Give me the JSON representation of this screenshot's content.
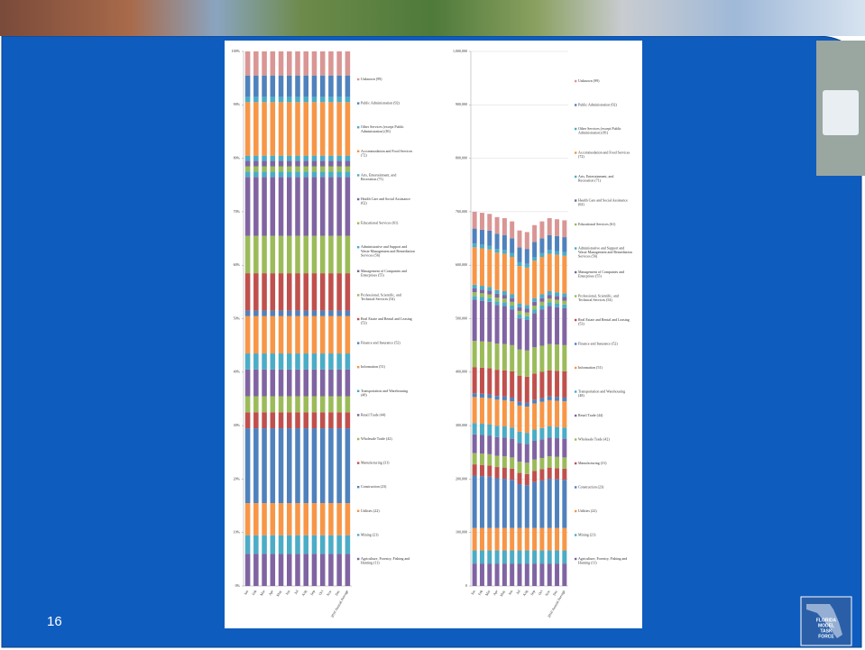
{
  "slide": {
    "page_number": "16",
    "logo": [
      "FLORIDA",
      "MODEL",
      "TASK",
      "FORCE"
    ]
  },
  "chart_data": [
    {
      "type": "stacked-bar",
      "categories": [
        "Jan",
        "Feb",
        "Mar",
        "Apr",
        "May",
        "Jun",
        "Jul",
        "Aug",
        "Sep",
        "Oct",
        "Nov",
        "Dec",
        "2010 Annual Average"
      ],
      "ylim": [
        0,
        100
      ],
      "yticks": [
        {
          "value": 0,
          "label": "0%"
        },
        {
          "value": 10,
          "label": "10%"
        },
        {
          "value": 20,
          "label": "20%"
        },
        {
          "value": 30,
          "label": "30%"
        },
        {
          "value": 40,
          "label": "40%"
        },
        {
          "value": 50,
          "label": "50%"
        },
        {
          "value": 60,
          "label": "60%"
        },
        {
          "value": 70,
          "label": "70%"
        },
        {
          "value": 80,
          "label": "80%"
        },
        {
          "value": 90,
          "label": "90%"
        },
        {
          "value": 100,
          "label": "100%"
        }
      ],
      "grid": false,
      "legend": "right",
      "series": [
        {
          "name": "Agriculture, Forestry, Fishing and Hunting (11)",
          "color": "#8064A2",
          "values": [
            6,
            6,
            6,
            6,
            6,
            6,
            6,
            6,
            6,
            6,
            6,
            6,
            6
          ]
        },
        {
          "name": "Mining (21)",
          "color": "#4BACC6",
          "values": [
            3.5,
            3.5,
            3.5,
            3.5,
            3.5,
            3.5,
            3.5,
            3.5,
            3.5,
            3.5,
            3.5,
            3.5,
            3.5
          ]
        },
        {
          "name": "Utilities (22)",
          "color": "#F79646",
          "values": [
            6,
            6,
            6,
            6,
            6,
            6,
            6,
            6,
            6,
            6,
            6,
            6,
            6
          ]
        },
        {
          "name": "Construction (23)",
          "color": "#4F81BD",
          "values": [
            14,
            14,
            14,
            14,
            14,
            14,
            14,
            14,
            14,
            14,
            14,
            14,
            14
          ]
        },
        {
          "name": "Manufacturing (31)",
          "color": "#C0504D",
          "values": [
            3,
            3,
            3,
            3,
            3,
            3,
            3,
            3,
            3,
            3,
            3,
            3,
            3
          ]
        },
        {
          "name": "Wholesale Trade (42)",
          "color": "#9BBB59",
          "values": [
            3,
            3,
            3,
            3,
            3,
            3,
            3,
            3,
            3,
            3,
            3,
            3,
            3
          ]
        },
        {
          "name": "Retail Trade (44)",
          "color": "#8064A2",
          "values": [
            5,
            5,
            5,
            5,
            5,
            5,
            5,
            5,
            5,
            5,
            5,
            5,
            5
          ]
        },
        {
          "name": "Transportation and Warehousing (48)",
          "color": "#4BACC6",
          "values": [
            3,
            3,
            3,
            3,
            3,
            3,
            3,
            3,
            3,
            3,
            3,
            3,
            3
          ]
        },
        {
          "name": "Information (51)",
          "color": "#F79646",
          "values": [
            7,
            7,
            7,
            7,
            7,
            7,
            7,
            7,
            7,
            7,
            7,
            7,
            7
          ]
        },
        {
          "name": "Finance and Insurance (52)",
          "color": "#4F81BD",
          "values": [
            1,
            1,
            1,
            1,
            1,
            1,
            1,
            1,
            1,
            1,
            1,
            1,
            1
          ]
        },
        {
          "name": "Real Estate and Rental and Leasing (53)",
          "color": "#C0504D",
          "values": [
            7,
            7,
            7,
            7,
            7,
            7,
            7,
            7,
            7,
            7,
            7,
            7,
            7
          ]
        },
        {
          "name": "Professional, Scientific, and Technical Services (54)",
          "color": "#9BBB59",
          "values": [
            7,
            7,
            7,
            7,
            7,
            7,
            7,
            7,
            7,
            7,
            7,
            7,
            7
          ]
        },
        {
          "name": "Management of Companies and Enterprises (55)",
          "color": "#8064A2",
          "values": [
            11,
            11,
            11,
            11,
            11,
            11,
            11,
            11,
            11,
            11,
            11,
            11,
            11
          ]
        },
        {
          "name": "Administrative and Support and Waste Management and Remediation Services (56)",
          "color": "#4BACC6",
          "values": [
            1,
            1,
            1,
            1,
            1,
            1,
            1,
            1,
            1,
            1,
            1,
            1,
            1
          ]
        },
        {
          "name": "Educational Services (61)",
          "color": "#9BBB59",
          "values": [
            1,
            1,
            1,
            1,
            1,
            1,
            1,
            1,
            1,
            1,
            1,
            1,
            1
          ]
        },
        {
          "name": "Health Care and Social Assistance (62)",
          "color": "#8064A2",
          "values": [
            1,
            1,
            1,
            1,
            1,
            1,
            1,
            1,
            1,
            1,
            1,
            1,
            1
          ]
        },
        {
          "name": "Arts, Entertainment, and Recreation (71)",
          "color": "#4BACC6",
          "values": [
            1,
            1,
            1,
            1,
            1,
            1,
            1,
            1,
            1,
            1,
            1,
            1,
            1
          ]
        },
        {
          "name": "Accommodation and Food Services (72)",
          "color": "#F79646",
          "values": [
            10,
            10,
            10,
            10,
            10,
            10,
            10,
            10,
            10,
            10,
            10,
            10,
            10
          ]
        },
        {
          "name": "Other Services (except Public Administration) (81)",
          "color": "#4BACC6",
          "values": [
            1,
            1,
            1,
            1,
            1,
            1,
            1,
            1,
            1,
            1,
            1,
            1,
            1
          ]
        },
        {
          "name": "Public Administration (92)",
          "color": "#4F81BD",
          "values": [
            4,
            4,
            4,
            4,
            4,
            4,
            4,
            4,
            4,
            4,
            4,
            4,
            4
          ]
        },
        {
          "name": "Unknown (99)",
          "color": "#D99694",
          "values": [
            4.5,
            4.5,
            4.5,
            4.5,
            4.5,
            4.5,
            4.5,
            4.5,
            4.5,
            4.5,
            4.5,
            4.5,
            4.5
          ]
        }
      ]
    },
    {
      "type": "stacked-bar",
      "categories": [
        "Jan",
        "Feb",
        "Mar",
        "Apr",
        "May",
        "Jun",
        "Jul",
        "Aug",
        "Sep",
        "Oct",
        "Nov",
        "Dec",
        "2010 Annual Average"
      ],
      "ylim": [
        0,
        1000000
      ],
      "yticks": [
        0,
        {
          "value": 100000,
          "label": "100,000"
        },
        {
          "value": 200000,
          "label": "200,000"
        },
        {
          "value": 300000,
          "label": "300,000"
        },
        {
          "value": 400000,
          "label": "400,000"
        },
        {
          "value": 500000,
          "label": "500,000"
        },
        {
          "value": 600000,
          "label": "600,000"
        },
        {
          "value": 700000,
          "label": "700,000"
        },
        {
          "value": 800000,
          "label": "800,000"
        },
        {
          "value": 900000,
          "label": "900,000"
        },
        {
          "value": 1000000,
          "label": "1,000,000"
        }
      ],
      "grid": true,
      "legend": "right",
      "series": [
        {
          "name": "Agriculture, Forestry, Fishing and Hunting (11)",
          "color": "#8064A2",
          "values": [
            42000,
            42000,
            42000,
            42000,
            42000,
            42000,
            42000,
            42000,
            42000,
            42000,
            42000,
            42000,
            42000
          ]
        },
        {
          "name": "Mining (21)",
          "color": "#4BACC6",
          "values": [
            24500,
            24500,
            24500,
            24500,
            24500,
            24500,
            24500,
            24500,
            24500,
            24500,
            24500,
            24500,
            24500
          ]
        },
        {
          "name": "Utilities (22)",
          "color": "#F79646",
          "values": [
            42000,
            42000,
            42000,
            42000,
            42000,
            42000,
            42000,
            42000,
            42000,
            42000,
            42000,
            42000,
            42000
          ]
        },
        {
          "name": "Construction (23)",
          "color": "#4F81BD",
          "values": [
            98000,
            97000,
            96000,
            93000,
            92000,
            90000,
            82000,
            80000,
            86000,
            89000,
            92000,
            91000,
            90000
          ]
        },
        {
          "name": "Manufacturing (31)",
          "color": "#C0504D",
          "values": [
            21000,
            21000,
            21000,
            21000,
            21000,
            21000,
            21000,
            21000,
            21000,
            21000,
            21000,
            21000,
            21000
          ]
        },
        {
          "name": "Wholesale Trade (42)",
          "color": "#9BBB59",
          "values": [
            21000,
            21000,
            21000,
            21000,
            21000,
            21000,
            21000,
            21000,
            21000,
            21000,
            21000,
            21000,
            21000
          ]
        },
        {
          "name": "Retail Trade (44)",
          "color": "#8064A2",
          "values": [
            35000,
            35000,
            35000,
            35000,
            35000,
            35000,
            35000,
            35000,
            35000,
            35000,
            35000,
            35000,
            35000
          ]
        },
        {
          "name": "Transportation and Warehousing (48)",
          "color": "#4BACC6",
          "values": [
            21000,
            21000,
            21000,
            21000,
            21000,
            21000,
            21000,
            21000,
            21000,
            21000,
            21000,
            21000,
            21000
          ]
        },
        {
          "name": "Information (51)",
          "color": "#F79646",
          "values": [
            49000,
            49000,
            49000,
            49000,
            49000,
            49000,
            49000,
            49000,
            49000,
            49000,
            49000,
            49000,
            49000
          ]
        },
        {
          "name": "Finance and Insurance (52)",
          "color": "#4F81BD",
          "values": [
            7000,
            7000,
            7000,
            7000,
            7000,
            7000,
            7000,
            7000,
            7000,
            7000,
            7000,
            7000,
            7000
          ]
        },
        {
          "name": "Real Estate and Rental and Leasing (53)",
          "color": "#C0504D",
          "values": [
            49000,
            49000,
            49000,
            49000,
            49000,
            49000,
            49000,
            49000,
            49000,
            49000,
            49000,
            49000,
            49000
          ]
        },
        {
          "name": "Professional, Scientific, and Technical Services (54)",
          "color": "#9BBB59",
          "values": [
            49000,
            49000,
            49000,
            49000,
            49000,
            49000,
            49000,
            49000,
            49000,
            49000,
            49000,
            49000,
            49000
          ]
        },
        {
          "name": "Management of Companies and Enterprises (55)",
          "color": "#8064A2",
          "values": [
            77000,
            76000,
            75000,
            72000,
            71000,
            67000,
            58000,
            57000,
            64000,
            68000,
            71000,
            70000,
            69000
          ]
        },
        {
          "name": "Administrative and Support and Waste Management and Remediation Services (56)",
          "color": "#4BACC6",
          "values": [
            7000,
            7000,
            7000,
            7000,
            7000,
            7000,
            7000,
            7000,
            7000,
            7000,
            7000,
            7000,
            7000
          ]
        },
        {
          "name": "Educational Services (61)",
          "color": "#9BBB59",
          "values": [
            7000,
            7000,
            7000,
            7000,
            7000,
            7000,
            7000,
            7000,
            7000,
            7000,
            7000,
            7000,
            7000
          ]
        },
        {
          "name": "Health Care and Social Assistance (62)",
          "color": "#8064A2",
          "values": [
            7000,
            7000,
            7000,
            7000,
            7000,
            7000,
            7000,
            7000,
            7000,
            7000,
            7000,
            7000,
            7000
          ]
        },
        {
          "name": "Arts, Entertainment, and Recreation (71)",
          "color": "#4BACC6",
          "values": [
            7000,
            7000,
            7000,
            7000,
            7000,
            7000,
            7000,
            7000,
            7000,
            7000,
            7000,
            7000,
            7000
          ]
        },
        {
          "name": "Accommodation and Food Services (72)",
          "color": "#F79646",
          "values": [
            70000,
            70000,
            70000,
            70000,
            70000,
            70000,
            70000,
            70000,
            70000,
            70000,
            70000,
            70000,
            70000
          ]
        },
        {
          "name": "Other Services (except Public Administration) (81)",
          "color": "#4BACC6",
          "values": [
            7000,
            7000,
            7000,
            7000,
            7000,
            7000,
            7000,
            7000,
            7000,
            7000,
            7000,
            7000,
            7000
          ]
        },
        {
          "name": "Public Administration (92)",
          "color": "#4F81BD",
          "values": [
            28000,
            28000,
            28000,
            28000,
            28000,
            28000,
            28000,
            28000,
            28000,
            28000,
            28000,
            28000,
            28000
          ]
        },
        {
          "name": "Unknown (99)",
          "color": "#D99694",
          "values": [
            31500,
            31500,
            31500,
            31500,
            31500,
            31500,
            31500,
            31500,
            31500,
            31500,
            31500,
            31500,
            31500
          ]
        }
      ]
    }
  ]
}
